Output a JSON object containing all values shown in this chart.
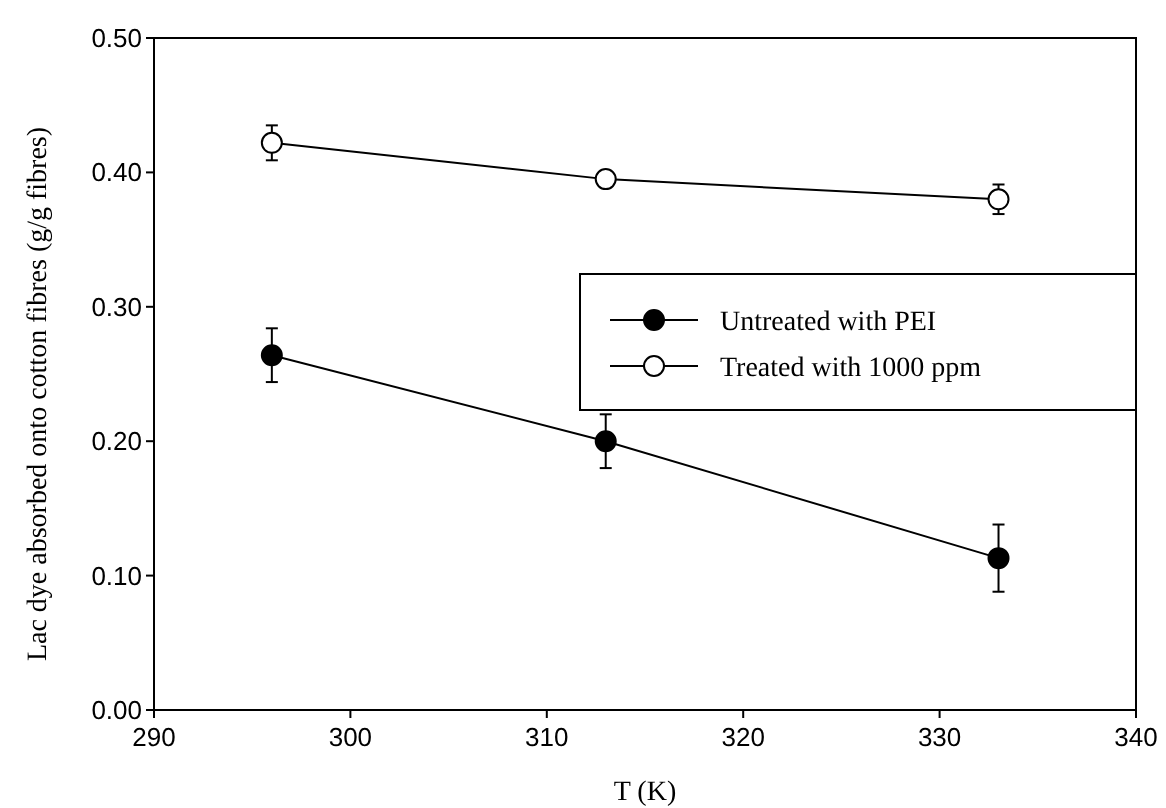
{
  "chart_data": {
    "type": "line",
    "xlabel": "T (K)",
    "ylabel": "Lac dye absorbed onto cotton fibres (g/g fibres)",
    "x": [
      296,
      313,
      333
    ],
    "series": [
      {
        "name": "Untreated with PEI",
        "color": "#000000",
        "values": [
          0.264,
          0.2,
          0.113
        ],
        "errors": [
          0.02,
          0.02,
          0.025
        ]
      },
      {
        "name": "Treated with 1000 ppm",
        "color": "#ffffff",
        "values": [
          0.422,
          0.395,
          0.38
        ],
        "errors": [
          0.013,
          null,
          0.011
        ]
      }
    ],
    "xlim": [
      290,
      340
    ],
    "xticks": [
      290,
      300,
      310,
      320,
      330,
      340
    ],
    "ylim": [
      0,
      0.5
    ],
    "yticks": [
      {
        "value": 0,
        "label": "0.00"
      },
      {
        "value": 0.1,
        "label": "0.10"
      },
      {
        "value": 0.2,
        "label": "0.20"
      },
      {
        "value": 0.3,
        "label": "0.30"
      },
      {
        "value": 0.4,
        "label": "0.40"
      },
      {
        "value": 0.5,
        "label": "0.50"
      }
    ],
    "legend": "right",
    "marker": "circle",
    "line_style": "solid",
    "grid": false
  }
}
